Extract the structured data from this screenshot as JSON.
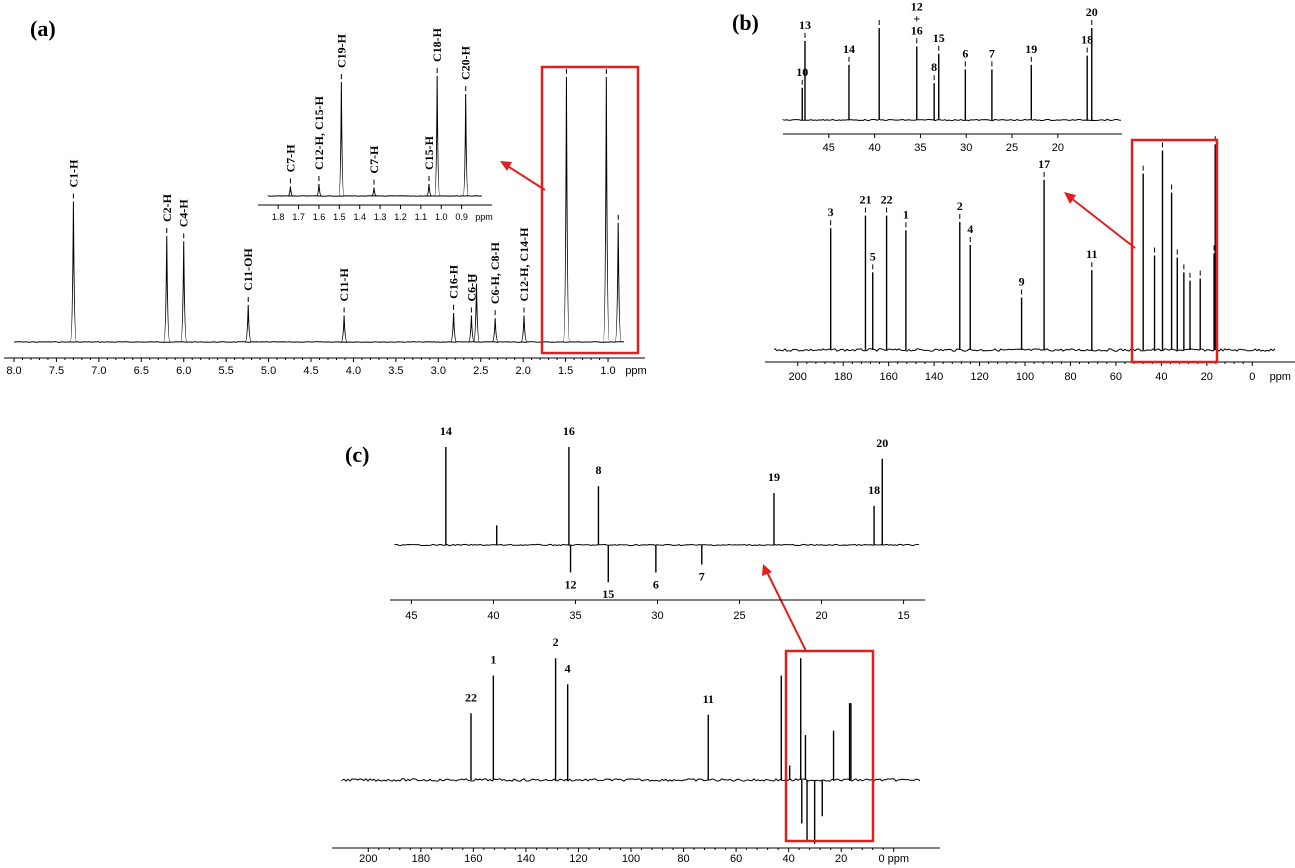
{
  "panels": {
    "a": "(a)",
    "b": "(b)",
    "c": "(c)"
  },
  "colors": {
    "highlight": "#e0201e",
    "ink": "#000000"
  },
  "chart_data": [
    {
      "id": "a",
      "type": "line",
      "xlabel": "ppm",
      "xlim": [
        8.0,
        0.8
      ],
      "ticks": [
        "8.0",
        "7.5",
        "7.0",
        "6.5",
        "6.0",
        "5.5",
        "5.0",
        "4.5",
        "4.0",
        "3.5",
        "3.0",
        "2.5",
        "2.0",
        "1.5",
        "1.0",
        "ppm"
      ],
      "tick_values": [
        8.0,
        7.5,
        7.0,
        6.5,
        6.0,
        5.5,
        5.0,
        4.5,
        4.0,
        3.5,
        3.0,
        2.5,
        2.0,
        1.5,
        1.0
      ],
      "peaks": [
        {
          "x": 7.3,
          "h": 0.53,
          "label": "C1-H"
        },
        {
          "x": 6.2,
          "h": 0.4,
          "label": "C2-H"
        },
        {
          "x": 6.0,
          "h": 0.38,
          "label": "C4-H"
        },
        {
          "x": 5.24,
          "h": 0.14,
          "label": "C11-OH"
        },
        {
          "x": 4.11,
          "h": 0.1,
          "label": "C11-H"
        },
        {
          "x": 2.82,
          "h": 0.11,
          "label": "C16-H"
        },
        {
          "x": 2.61,
          "h": 0.1,
          "label": "C6-H"
        },
        {
          "x": 2.55,
          "h": 0.22,
          "label": ""
        },
        {
          "x": 2.33,
          "h": 0.09,
          "label": "C6-H, C8-H"
        },
        {
          "x": 1.99,
          "h": 0.1,
          "label": "C12-H, C14-H"
        },
        {
          "x": 1.49,
          "h": 1.0,
          "label": ""
        },
        {
          "x": 1.02,
          "h": 1.0,
          "label": ""
        },
        {
          "x": 0.88,
          "h": 0.45,
          "label": ""
        }
      ],
      "inset": {
        "xlim": [
          1.85,
          0.8
        ],
        "ticks": [
          "1.8",
          "1.7",
          "1.6",
          "1.5",
          "1.4",
          "1.3",
          "1.2",
          "1.1",
          "1.0",
          "0.9",
          "ppm"
        ],
        "tick_values": [
          1.8,
          1.7,
          1.6,
          1.5,
          1.4,
          1.3,
          1.2,
          1.1,
          1.0,
          0.9
        ],
        "peaks": [
          {
            "x": 1.74,
            "h": 0.08,
            "label": "C7-H"
          },
          {
            "x": 1.6,
            "h": 0.1,
            "label": "C12-H, C15-H"
          },
          {
            "x": 1.49,
            "h": 0.95,
            "label": "C19-H"
          },
          {
            "x": 1.33,
            "h": 0.07,
            "label": "C7-H"
          },
          {
            "x": 1.06,
            "h": 0.1,
            "label": "C15-H"
          },
          {
            "x": 1.02,
            "h": 1.0,
            "label": "C18-H"
          },
          {
            "x": 0.88,
            "h": 0.85,
            "label": "C20-H"
          }
        ]
      }
    },
    {
      "id": "b",
      "type": "line",
      "xlabel": "ppm",
      "xlim": [
        210,
        -10
      ],
      "ticks": [
        "200",
        "180",
        "160",
        "140",
        "120",
        "100",
        "80",
        "60",
        "40",
        "20",
        "0",
        "ppm"
      ],
      "tick_values": [
        200,
        180,
        160,
        140,
        120,
        100,
        80,
        60,
        40,
        20,
        0
      ],
      "peaks": [
        {
          "x": 185.5,
          "h": 0.58,
          "label": "3"
        },
        {
          "x": 170.2,
          "h": 0.64,
          "label": "21"
        },
        {
          "x": 167.0,
          "h": 0.37,
          "label": "5"
        },
        {
          "x": 160.9,
          "h": 0.64,
          "label": "22"
        },
        {
          "x": 152.4,
          "h": 0.57,
          "label": "1"
        },
        {
          "x": 128.7,
          "h": 0.61,
          "label": "2"
        },
        {
          "x": 124.1,
          "h": 0.5,
          "label": "4"
        },
        {
          "x": 101.5,
          "h": 0.25,
          "label": "9"
        },
        {
          "x": 91.6,
          "h": 0.81,
          "label": "17"
        },
        {
          "x": 70.6,
          "h": 0.38,
          "label": "11"
        },
        {
          "x": 48.0,
          "h": 0.84,
          "label": ""
        },
        {
          "x": 43.0,
          "h": 0.45,
          "label": ""
        },
        {
          "x": 39.5,
          "h": 0.95,
          "label": ""
        },
        {
          "x": 35.5,
          "h": 0.75,
          "label": ""
        },
        {
          "x": 33.0,
          "h": 0.44,
          "label": ""
        },
        {
          "x": 30.1,
          "h": 0.37,
          "label": ""
        },
        {
          "x": 27.4,
          "h": 0.33,
          "label": ""
        },
        {
          "x": 22.9,
          "h": 0.34,
          "label": ""
        },
        {
          "x": 16.8,
          "h": 0.46,
          "label": ""
        },
        {
          "x": 16.3,
          "h": 0.98,
          "label": ""
        }
      ],
      "inset": {
        "xlim": [
          50,
          13
        ],
        "ticks": [
          "45",
          "40",
          "35",
          "30",
          "25",
          "20"
        ],
        "tick_values": [
          45,
          40,
          35,
          30,
          25,
          20
        ],
        "peaks": [
          {
            "x": 47.9,
            "h": 0.35,
            "label": "10"
          },
          {
            "x": 47.6,
            "h": 0.86,
            "label": "13"
          },
          {
            "x": 42.8,
            "h": 0.6,
            "label": "14"
          },
          {
            "x": 39.5,
            "h": 1.0,
            "label": ""
          },
          {
            "x": 35.4,
            "h": 0.8,
            "label": "12\n+\n16"
          },
          {
            "x": 33.5,
            "h": 0.4,
            "label": "8"
          },
          {
            "x": 33.0,
            "h": 0.72,
            "label": "15"
          },
          {
            "x": 30.1,
            "h": 0.55,
            "label": "6"
          },
          {
            "x": 27.2,
            "h": 0.55,
            "label": "7"
          },
          {
            "x": 22.9,
            "h": 0.6,
            "label": "19"
          },
          {
            "x": 16.8,
            "h": 0.7,
            "label": "18"
          },
          {
            "x": 16.3,
            "h": 1.0,
            "label": "20"
          }
        ]
      }
    },
    {
      "id": "c",
      "type": "line",
      "xlabel": "ppm",
      "xlim": [
        210,
        -10
      ],
      "ticks": [
        "200",
        "180",
        "160",
        "140",
        "120",
        "100",
        "80",
        "60",
        "40",
        "20",
        "0 ppm"
      ],
      "tick_values": [
        200,
        180,
        160,
        140,
        120,
        100,
        80,
        60,
        40,
        20,
        0
      ],
      "peaks": [
        {
          "x": 160.9,
          "h": 0.46,
          "label": "22"
        },
        {
          "x": 152.4,
          "h": 0.72,
          "label": "1"
        },
        {
          "x": 128.7,
          "h": 0.84,
          "label": "2"
        },
        {
          "x": 124.1,
          "h": 0.66,
          "label": "4"
        },
        {
          "x": 70.6,
          "h": 0.45,
          "label": "11"
        },
        {
          "x": 42.8,
          "h": 0.72,
          "label": ""
        },
        {
          "x": 39.6,
          "h": 0.1,
          "label": ""
        },
        {
          "x": 35.4,
          "h": 0.84,
          "label": ""
        },
        {
          "x": 35.0,
          "h": -0.3,
          "label": ""
        },
        {
          "x": 33.6,
          "h": 0.31,
          "label": ""
        },
        {
          "x": 33.0,
          "h": -0.42,
          "label": ""
        },
        {
          "x": 30.1,
          "h": -0.44,
          "label": ""
        },
        {
          "x": 27.2,
          "h": -0.25,
          "label": ""
        },
        {
          "x": 22.9,
          "h": 0.34,
          "label": ""
        },
        {
          "x": 16.8,
          "h": 0.53,
          "label": ""
        },
        {
          "x": 16.3,
          "h": 0.53,
          "label": ""
        }
      ],
      "inset": {
        "xlim": [
          46,
          14
        ],
        "ticks": [
          "45",
          "40",
          "35",
          "30",
          "25",
          "20",
          "15"
        ],
        "tick_values": [
          45,
          40,
          35,
          30,
          25,
          20,
          15
        ],
        "peaks": [
          {
            "x": 42.9,
            "h": 1.0,
            "label": "14"
          },
          {
            "x": 39.8,
            "h": 0.2,
            "label": ""
          },
          {
            "x": 35.4,
            "h": 1.0,
            "label": "16"
          },
          {
            "x": 35.3,
            "h": -0.28,
            "label": "12"
          },
          {
            "x": 33.6,
            "h": 0.6,
            "label": "8"
          },
          {
            "x": 33.0,
            "h": -0.38,
            "label": "15"
          },
          {
            "x": 30.1,
            "h": -0.28,
            "label": "6"
          },
          {
            "x": 27.3,
            "h": -0.2,
            "label": "7"
          },
          {
            "x": 22.9,
            "h": 0.53,
            "label": "19"
          },
          {
            "x": 16.8,
            "h": 0.4,
            "label": "18"
          },
          {
            "x": 16.3,
            "h": 0.88,
            "label": "20"
          }
        ]
      }
    }
  ]
}
